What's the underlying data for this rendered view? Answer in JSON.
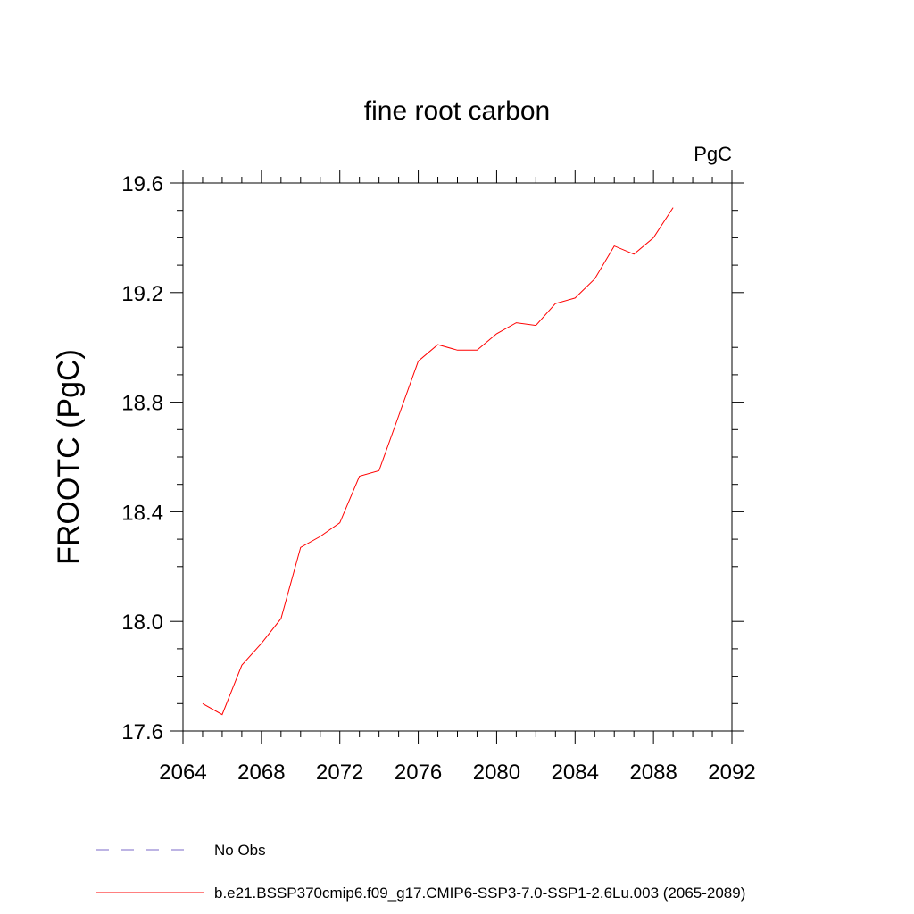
{
  "chart_data": {
    "type": "line",
    "title": "fine root carbon",
    "units": "PgC",
    "ylabel": "FROOTC  (PgC)",
    "xlabel": "",
    "xlim": [
      2064,
      2092
    ],
    "ylim": [
      17.6,
      19.6
    ],
    "xticks": [
      2064,
      2068,
      2072,
      2076,
      2080,
      2084,
      2088,
      2092
    ],
    "xtick_labels": [
      "2064",
      "2068",
      "2072",
      "2076",
      "2080",
      "2084",
      "2088",
      "2092"
    ],
    "yticks": [
      17.6,
      18.0,
      18.4,
      18.8,
      19.2,
      19.6
    ],
    "ytick_labels": [
      "17.6",
      "18.0",
      "18.4",
      "18.8",
      "19.2",
      "19.6"
    ],
    "series": [
      {
        "name": "b.e21.BSSP370cmip6.f09_g17.CMIP6-SSP3-7.0-SSP1-2.6Lu.003 (2065-2089)",
        "color": "#ff0000",
        "x": [
          2065,
          2066,
          2067,
          2068,
          2069,
          2070,
          2071,
          2072,
          2073,
          2074,
          2075,
          2076,
          2077,
          2078,
          2079,
          2080,
          2081,
          2082,
          2083,
          2084,
          2085,
          2086,
          2087,
          2088,
          2089
        ],
        "y": [
          17.7,
          17.66,
          17.84,
          17.92,
          18.01,
          18.27,
          18.31,
          18.36,
          18.53,
          18.55,
          18.75,
          18.95,
          19.01,
          18.99,
          18.99,
          19.05,
          19.09,
          19.08,
          19.16,
          19.18,
          19.25,
          19.37,
          19.34,
          19.4,
          19.51
        ]
      }
    ],
    "legend": [
      {
        "label": "No Obs",
        "style": "dashed",
        "color": "#7b68c8"
      },
      {
        "label": "b.e21.BSSP370cmip6.f09_g17.CMIP6-SSP3-7.0-SSP1-2.6Lu.003 (2065-2089)",
        "style": "solid",
        "color": "#ff0000"
      }
    ],
    "legend_position": "bottom-left",
    "grid": false
  }
}
